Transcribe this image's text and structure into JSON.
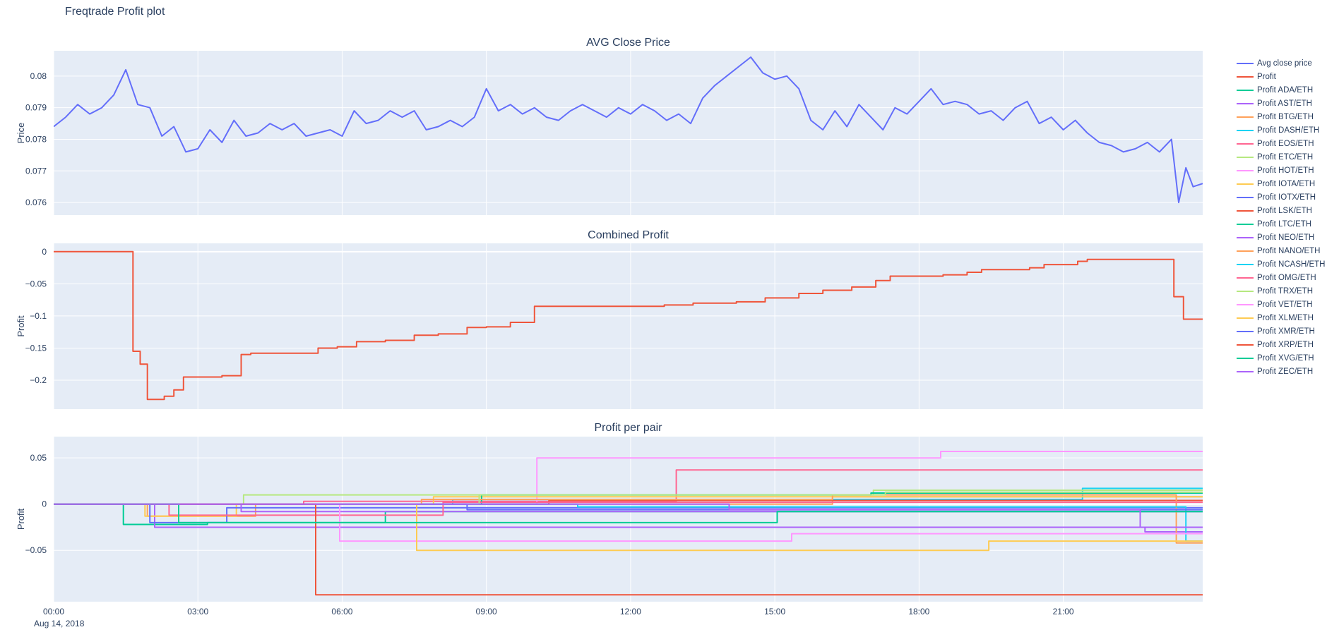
{
  "page": {
    "title": "Freqtrade Profit plot"
  },
  "date_annotation": "Aug 14, 2018",
  "theme": {
    "plot_bg": "#e5ecf6",
    "grid": "#ffffff",
    "text": "#2a3f5f"
  },
  "legend": {
    "items": [
      {
        "label": "Avg close price",
        "color": "#636efa"
      },
      {
        "label": "Profit",
        "color": "#EF553B"
      },
      {
        "label": "Profit ADA/ETH",
        "color": "#00cc96"
      },
      {
        "label": "Profit AST/ETH",
        "color": "#ab63fa"
      },
      {
        "label": "Profit BTG/ETH",
        "color": "#FFA15A"
      },
      {
        "label": "Profit DASH/ETH",
        "color": "#19d3f3"
      },
      {
        "label": "Profit EOS/ETH",
        "color": "#FF6692"
      },
      {
        "label": "Profit ETC/ETH",
        "color": "#B6E880"
      },
      {
        "label": "Profit HOT/ETH",
        "color": "#FF97FF"
      },
      {
        "label": "Profit IOTA/ETH",
        "color": "#FECB52"
      },
      {
        "label": "Profit IOTX/ETH",
        "color": "#636efa"
      },
      {
        "label": "Profit LSK/ETH",
        "color": "#EF553B"
      },
      {
        "label": "Profit LTC/ETH",
        "color": "#00cc96"
      },
      {
        "label": "Profit NEO/ETH",
        "color": "#ab63fa"
      },
      {
        "label": "Profit NANO/ETH",
        "color": "#FFA15A"
      },
      {
        "label": "Profit NCASH/ETH",
        "color": "#19d3f3"
      },
      {
        "label": "Profit OMG/ETH",
        "color": "#FF6692"
      },
      {
        "label": "Profit TRX/ETH",
        "color": "#B6E880"
      },
      {
        "label": "Profit VET/ETH",
        "color": "#FF97FF"
      },
      {
        "label": "Profit XLM/ETH",
        "color": "#FECB52"
      },
      {
        "label": "Profit XMR/ETH",
        "color": "#636efa"
      },
      {
        "label": "Profit XRP/ETH",
        "color": "#EF553B"
      },
      {
        "label": "Profit XVG/ETH",
        "color": "#00cc96"
      },
      {
        "label": "Profit ZEC/ETH",
        "color": "#ab63fa"
      }
    ]
  },
  "chart_data": [
    {
      "type": "line",
      "title": "AVG Close Price",
      "ylabel": "Price",
      "xlim": [
        0,
        23.9
      ],
      "ylim": [
        0.0756,
        0.0808
      ],
      "yticks": [
        0.076,
        0.077,
        0.078,
        0.079,
        0.08
      ],
      "grid": true,
      "legend_position": "right",
      "series": [
        {
          "name": "Avg close price",
          "color": "#636efa",
          "mode": "linear",
          "x": [
            0,
            0.25,
            0.5,
            0.75,
            1,
            1.25,
            1.5,
            1.75,
            2,
            2.25,
            2.5,
            2.75,
            3,
            3.25,
            3.5,
            3.75,
            4,
            4.25,
            4.5,
            4.75,
            5,
            5.25,
            5.5,
            5.75,
            6,
            6.25,
            6.5,
            6.75,
            7,
            7.25,
            7.5,
            7.75,
            8,
            8.25,
            8.5,
            8.75,
            9,
            9.25,
            9.5,
            9.75,
            10,
            10.25,
            10.5,
            10.75,
            11,
            11.25,
            11.5,
            11.75,
            12,
            12.25,
            12.5,
            12.75,
            13,
            13.25,
            13.5,
            13.75,
            14,
            14.25,
            14.5,
            14.75,
            15,
            15.25,
            15.5,
            15.75,
            16,
            16.25,
            16.5,
            16.75,
            17,
            17.25,
            17.5,
            17.75,
            18,
            18.25,
            18.5,
            18.75,
            19,
            19.25,
            19.5,
            19.75,
            20,
            20.25,
            20.5,
            20.75,
            21,
            21.25,
            21.5,
            21.75,
            22,
            22.25,
            22.5,
            22.75,
            23,
            23.25,
            23.4,
            23.55,
            23.7,
            23.9
          ],
          "y": [
            0.0784,
            0.0787,
            0.0791,
            0.0788,
            0.079,
            0.0794,
            0.0802,
            0.0791,
            0.079,
            0.0781,
            0.0784,
            0.0776,
            0.0777,
            0.0783,
            0.0779,
            0.0786,
            0.0781,
            0.0782,
            0.0785,
            0.0783,
            0.0785,
            0.0781,
            0.0782,
            0.0783,
            0.0781,
            0.0789,
            0.0785,
            0.0786,
            0.0789,
            0.0787,
            0.0789,
            0.0783,
            0.0784,
            0.0786,
            0.0784,
            0.0787,
            0.0796,
            0.0789,
            0.0791,
            0.0788,
            0.079,
            0.0787,
            0.0786,
            0.0789,
            0.0791,
            0.0789,
            0.0787,
            0.079,
            0.0788,
            0.0791,
            0.0789,
            0.0786,
            0.0788,
            0.0785,
            0.0793,
            0.0797,
            0.08,
            0.0803,
            0.0806,
            0.0801,
            0.0799,
            0.08,
            0.0796,
            0.0786,
            0.0783,
            0.0789,
            0.0784,
            0.0791,
            0.0787,
            0.0783,
            0.079,
            0.0788,
            0.0792,
            0.0796,
            0.0791,
            0.0792,
            0.0791,
            0.0788,
            0.0789,
            0.0786,
            0.079,
            0.0792,
            0.0785,
            0.0787,
            0.0783,
            0.0786,
            0.0782,
            0.0779,
            0.0778,
            0.0776,
            0.0777,
            0.0779,
            0.0776,
            0.078,
            0.076,
            0.0771,
            0.0765,
            0.0766
          ]
        }
      ]
    },
    {
      "type": "line",
      "title": "Combined Profit",
      "ylabel": "Profit",
      "xlim": [
        0,
        23.9
      ],
      "ylim": [
        -0.245,
        0.013
      ],
      "yticks": [
        0,
        -0.05,
        -0.1,
        -0.15,
        -0.2
      ],
      "grid": true,
      "series": [
        {
          "name": "Profit",
          "color": "#EF553B",
          "mode": "step",
          "x": [
            0,
            1.65,
            1.8,
            1.95,
            2.3,
            2.5,
            2.7,
            3.5,
            3.9,
            4.1,
            5.5,
            5.9,
            6.3,
            6.9,
            7.5,
            8,
            8.6,
            9,
            9.5,
            10,
            12.7,
            13.3,
            14.2,
            14.8,
            15.5,
            16,
            16.6,
            17.1,
            17.4,
            18.5,
            19,
            19.3,
            20.3,
            20.6,
            21.3,
            21.5,
            23.3,
            23.5,
            23.9
          ],
          "y": [
            0,
            -0.155,
            -0.175,
            -0.23,
            -0.225,
            -0.215,
            -0.195,
            -0.193,
            -0.16,
            -0.158,
            -0.15,
            -0.148,
            -0.14,
            -0.138,
            -0.13,
            -0.128,
            -0.118,
            -0.117,
            -0.11,
            -0.085,
            -0.083,
            -0.08,
            -0.078,
            -0.072,
            -0.065,
            -0.06,
            -0.055,
            -0.045,
            -0.038,
            -0.036,
            -0.032,
            -0.028,
            -0.025,
            -0.02,
            -0.015,
            -0.012,
            -0.07,
            -0.105,
            -0.105
          ]
        }
      ]
    },
    {
      "type": "line",
      "title": "Profit per pair",
      "ylabel": "Profit",
      "xlim": [
        0,
        23.9
      ],
      "ylim": [
        -0.1055,
        0.073
      ],
      "yticks": [
        0.05,
        0,
        -0.05
      ],
      "xticks": {
        "positions": [
          0,
          3,
          6,
          9,
          12,
          15,
          18,
          21
        ],
        "labels": [
          "00:00",
          "03:00",
          "06:00",
          "09:00",
          "12:00",
          "15:00",
          "18:00",
          "21:00"
        ]
      },
      "grid": true,
      "series": [
        {
          "name": "Profit ADA/ETH",
          "color": "#00cc96",
          "mode": "step",
          "x": [
            0,
            1.45,
            3.2,
            6.9,
            23.9
          ],
          "y": [
            0,
            -0.022,
            -0.02,
            -0.008,
            -0.008
          ]
        },
        {
          "name": "Profit AST/ETH",
          "color": "#ab63fa",
          "mode": "step",
          "x": [
            0,
            2.1,
            22.7,
            23.9
          ],
          "y": [
            0,
            -0.025,
            -0.03,
            -0.03
          ]
        },
        {
          "name": "Profit BTG/ETH",
          "color": "#FFA15A",
          "mode": "step",
          "x": [
            0,
            1.95,
            4.2,
            16.2,
            23.9
          ],
          "y": [
            0,
            -0.013,
            0,
            0.008,
            0.008
          ]
        },
        {
          "name": "Profit DASH/ETH",
          "color": "#19d3f3",
          "mode": "step",
          "x": [
            0,
            8.3,
            21.4,
            23.9
          ],
          "y": [
            0,
            0.005,
            0.017,
            0.017
          ]
        },
        {
          "name": "Profit EOS/ETH",
          "color": "#FF6692",
          "mode": "step",
          "x": [
            0,
            5.2,
            12.95,
            23.9
          ],
          "y": [
            0,
            0.003,
            0.037,
            0.037
          ]
        },
        {
          "name": "Profit ETC/ETH",
          "color": "#B6E880",
          "mode": "step",
          "x": [
            0,
            3.95,
            17.05,
            23.9
          ],
          "y": [
            0,
            0.01,
            0.015,
            0.015
          ]
        },
        {
          "name": "Profit HOT/ETH",
          "color": "#FF97FF",
          "mode": "step",
          "x": [
            0,
            10.05,
            18.45,
            23.9
          ],
          "y": [
            0,
            0.05,
            0.057,
            0.057
          ]
        },
        {
          "name": "Profit IOTA/ETH",
          "color": "#FECB52",
          "mode": "step",
          "x": [
            0,
            1.9,
            3.8,
            7.9,
            23.9
          ],
          "y": [
            0,
            -0.013,
            0,
            0.008,
            0.008
          ]
        },
        {
          "name": "Profit IOTX/ETH",
          "color": "#636efa",
          "mode": "step",
          "x": [
            0,
            2,
            3.6,
            23.9
          ],
          "y": [
            0,
            -0.02,
            -0.004,
            -0.004
          ]
        },
        {
          "name": "Profit LSK/ETH",
          "color": "#EF553B",
          "mode": "step",
          "x": [
            0,
            10.3,
            23.9
          ],
          "y": [
            0,
            0.004,
            0.004
          ]
        },
        {
          "name": "Profit LTC/ETH",
          "color": "#00cc96",
          "mode": "step",
          "x": [
            0,
            8.9,
            17,
            23.9
          ],
          "y": [
            0,
            0.01,
            0.012,
            0.012
          ]
        },
        {
          "name": "Profit NEO/ETH",
          "color": "#ab63fa",
          "mode": "step",
          "x": [
            0,
            3.9,
            23.9
          ],
          "y": [
            0,
            -0.008,
            -0.008
          ]
        },
        {
          "name": "Profit NANO/ETH",
          "color": "#FFA15A",
          "mode": "step",
          "x": [
            0,
            7.65,
            16.2,
            23.35,
            23.9
          ],
          "y": [
            0,
            0.005,
            0.01,
            -0.042,
            -0.042
          ]
        },
        {
          "name": "Profit NCASH/ETH",
          "color": "#19d3f3",
          "mode": "step",
          "x": [
            0,
            10.9,
            23.55,
            23.9
          ],
          "y": [
            0,
            -0.003,
            -0.04,
            -0.04
          ]
        },
        {
          "name": "Profit OMG/ETH",
          "color": "#FF6692",
          "mode": "step",
          "x": [
            0,
            2.4,
            8.1,
            23.9
          ],
          "y": [
            0,
            -0.012,
            0.002,
            0.002
          ]
        },
        {
          "name": "Profit TRX/ETH",
          "color": "#B6E880",
          "mode": "step",
          "x": [
            0,
            8.85,
            17.3,
            23.9
          ],
          "y": [
            0,
            0.01,
            0.013,
            0.013
          ]
        },
        {
          "name": "Profit VET/ETH",
          "color": "#FF97FF",
          "mode": "step",
          "x": [
            0,
            5.95,
            15.35,
            23.9
          ],
          "y": [
            0,
            -0.04,
            -0.032,
            -0.032
          ]
        },
        {
          "name": "Profit XLM/ETH",
          "color": "#FECB52",
          "mode": "step",
          "x": [
            0,
            7.55,
            19.45,
            23.9
          ],
          "y": [
            0,
            -0.05,
            -0.04,
            -0.04
          ]
        },
        {
          "name": "Profit XMR/ETH",
          "color": "#636efa",
          "mode": "step",
          "x": [
            0,
            8.6,
            23.9
          ],
          "y": [
            0,
            -0.006,
            -0.006
          ]
        },
        {
          "name": "Profit XRP/ETH",
          "color": "#EF553B",
          "mode": "step",
          "x": [
            0,
            5.45,
            23.9
          ],
          "y": [
            0,
            -0.098,
            -0.098
          ]
        },
        {
          "name": "Profit XVG/ETH",
          "color": "#00cc96",
          "mode": "step",
          "x": [
            0,
            2.6,
            15.05,
            23.9
          ],
          "y": [
            0,
            -0.02,
            -0.008,
            -0.008
          ]
        },
        {
          "name": "Profit ZEC/ETH",
          "color": "#ab63fa",
          "mode": "step",
          "x": [
            0,
            14.05,
            22.6,
            23.9
          ],
          "y": [
            0,
            -0.006,
            -0.025,
            -0.025
          ]
        }
      ]
    }
  ]
}
